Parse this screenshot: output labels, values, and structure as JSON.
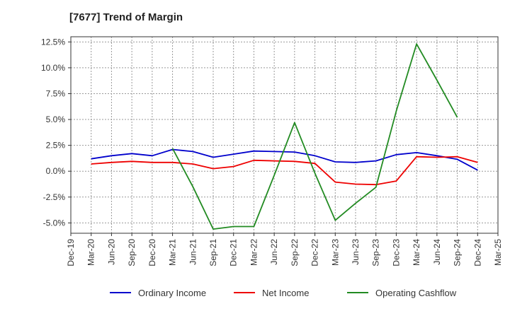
{
  "title": "[7677]  Trend of Margin",
  "chart_data": {
    "type": "line",
    "title": "[7677]  Trend of Margin",
    "xlabel": "",
    "ylabel": "",
    "x_ticks": [
      "Dec-19",
      "Mar-20",
      "Jun-20",
      "Sep-20",
      "Dec-20",
      "Mar-21",
      "Jun-21",
      "Sep-21",
      "Dec-21",
      "Mar-22",
      "Jun-22",
      "Sep-22",
      "Dec-22",
      "Mar-23",
      "Jun-23",
      "Sep-23",
      "Dec-23",
      "Mar-24",
      "Jun-24",
      "Sep-24",
      "Dec-24",
      "Mar-25"
    ],
    "y_ticks": [
      12.5,
      10.0,
      7.5,
      5.0,
      2.5,
      0.0,
      -2.5,
      -5.0
    ],
    "y_tick_labels": [
      "12.5%",
      "10.0%",
      "7.5%",
      "5.0%",
      "2.5%",
      "0.0%",
      "-2.5%",
      "-5.0%"
    ],
    "ylim": [
      -6.0,
      13.0
    ],
    "grid": true,
    "legend_position": "bottom",
    "series": [
      {
        "name": "Ordinary Income",
        "color": "#0000cc",
        "x": [
          "Mar-20",
          "Jun-20",
          "Sep-20",
          "Dec-20",
          "Mar-21",
          "Jun-21",
          "Sep-21",
          "Dec-21",
          "Mar-22",
          "Jun-22",
          "Sep-22",
          "Dec-22",
          "Mar-23",
          "Jun-23",
          "Sep-23",
          "Dec-23",
          "Mar-24",
          "Jun-24",
          "Sep-24",
          "Dec-24"
        ],
        "values": [
          1.2,
          1.5,
          1.7,
          1.5,
          2.1,
          1.9,
          1.35,
          1.65,
          1.95,
          1.9,
          1.85,
          1.5,
          0.9,
          0.85,
          1.0,
          1.6,
          1.8,
          1.5,
          1.15,
          0.1
        ]
      },
      {
        "name": "Net Income",
        "color": "#ee0000",
        "x": [
          "Mar-20",
          "Jun-20",
          "Sep-20",
          "Dec-20",
          "Mar-21",
          "Jun-21",
          "Sep-21",
          "Dec-21",
          "Mar-22",
          "Jun-22",
          "Sep-22",
          "Dec-22",
          "Mar-23",
          "Jun-23",
          "Sep-23",
          "Dec-23",
          "Mar-24",
          "Jun-24",
          "Sep-24",
          "Dec-24"
        ],
        "values": [
          0.7,
          0.85,
          0.95,
          0.85,
          0.85,
          0.7,
          0.25,
          0.45,
          1.05,
          1.0,
          0.95,
          0.75,
          -1.05,
          -1.25,
          -1.3,
          -0.95,
          1.4,
          1.35,
          1.4,
          0.85
        ]
      },
      {
        "name": "Operating Cashflow",
        "color": "#228b22",
        "x": [
          "Mar-21",
          "Jun-21",
          "Sep-21",
          "Dec-21",
          "Mar-22",
          "Jun-22",
          "Sep-22",
          "Dec-22",
          "Mar-23",
          "Jun-23",
          "Sep-23",
          "Dec-23",
          "Mar-24",
          "Jun-24",
          "Sep-24"
        ],
        "values": [
          2.2,
          -1.5,
          -5.6,
          -5.35,
          -5.35,
          -0.4,
          4.7,
          -0.2,
          -4.75,
          -3.1,
          -1.55,
          5.8,
          12.3,
          8.8,
          5.2
        ]
      }
    ]
  }
}
